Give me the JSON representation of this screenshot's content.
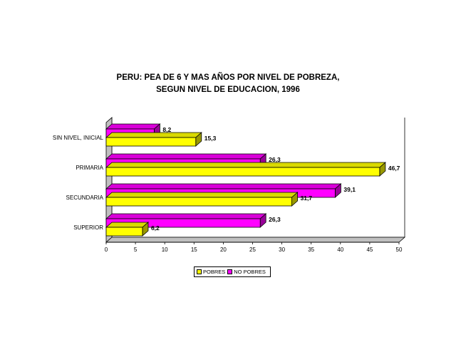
{
  "chart_data": {
    "type": "bar",
    "orientation": "horizontal",
    "title_lines": [
      "PERU: PEA DE 6 Y MAS AÑOS POR NIVEL DE POBREZA,",
      "SEGUN NIVEL DE EDUCACION, 1996"
    ],
    "categories": [
      "SIN NIVEL, INICIAL",
      "PRIMARIA",
      "SECUNDARIA",
      "SUPERIOR"
    ],
    "series": [
      {
        "name": "NO POBRES",
        "color": "#ff00ff",
        "values": [
          8.2,
          26.3,
          39.1,
          26.3
        ],
        "labels": [
          "8,2",
          "26,3",
          "39,1",
          "26,3"
        ]
      },
      {
        "name": "POBRES",
        "color": "#ffff00",
        "values": [
          15.3,
          46.7,
          31.7,
          6.2
        ],
        "labels": [
          "15,3",
          "46,7",
          "31,7",
          "6,2"
        ]
      }
    ],
    "xlim": [
      0,
      50
    ],
    "xticks": [
      "0",
      "5",
      "10",
      "15",
      "20",
      "25",
      "30",
      "35",
      "40",
      "45",
      "50"
    ],
    "legend": {
      "position": "bottom",
      "order": [
        "POBRES",
        "NO POBRES"
      ]
    },
    "grid": false,
    "three_d": true
  }
}
